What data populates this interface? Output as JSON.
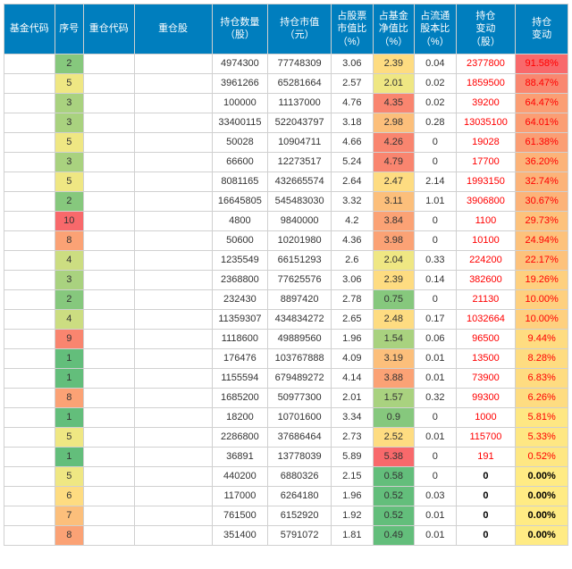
{
  "headers": [
    "基金代码",
    "序号",
    "重仓代码",
    "重仓股",
    "持仓数量\n（股）",
    "持仓市值\n（元）",
    "占股票\n市值比\n（%）",
    "占基金\n净值比\n（%）",
    "占流通\n股本比\n（%）",
    "持仓\n变动\n（股）",
    "持仓\n变动"
  ],
  "seqColorRamp": {
    "1": "#63be7b",
    "2": "#86c87d",
    "3": "#a9d27f",
    "4": "#ccdd81",
    "5": "#efe783",
    "6": "#fedc81",
    "7": "#fcbf7b",
    "8": "#fba275",
    "9": "#f9856f",
    "10": "#f8696b"
  },
  "col7Ramp": [
    {
      "min": 0,
      "max": 0.6,
      "color": "#63be7b"
    },
    {
      "min": 0.6,
      "max": 1.0,
      "color": "#86c87d"
    },
    {
      "min": 1.0,
      "max": 1.6,
      "color": "#a9d27f"
    },
    {
      "min": 1.6,
      "max": 2.1,
      "color": "#efe783"
    },
    {
      "min": 2.1,
      "max": 2.6,
      "color": "#fedc81"
    },
    {
      "min": 2.6,
      "max": 3.2,
      "color": "#fcbf7b"
    },
    {
      "min": 3.2,
      "max": 4.0,
      "color": "#fba275"
    },
    {
      "min": 4.0,
      "max": 4.8,
      "color": "#f9856f"
    },
    {
      "min": 4.8,
      "max": 10,
      "color": "#f8696b"
    }
  ],
  "col10Ramp": [
    {
      "min": 0,
      "max": 0.01,
      "color": "#ffeb84"
    },
    {
      "min": 0.01,
      "max": 6,
      "color": "#fee783"
    },
    {
      "min": 6,
      "max": 10,
      "color": "#fedc81"
    },
    {
      "min": 10,
      "max": 20,
      "color": "#fed07f"
    },
    {
      "min": 20,
      "max": 30,
      "color": "#fdc27c"
    },
    {
      "min": 30,
      "max": 40,
      "color": "#fcb379"
    },
    {
      "min": 40,
      "max": 65,
      "color": "#fb9e74"
    },
    {
      "min": 65,
      "max": 89,
      "color": "#f98770"
    },
    {
      "min": 89,
      "max": 100,
      "color": "#f8696b"
    }
  ],
  "rows": [
    {
      "seq": "2",
      "qty": "4974300",
      "mv": "77748309",
      "p1": "3.06",
      "p2": "2.39",
      "p3": "0.04",
      "chg": "2377800",
      "chgPct": "91.58%"
    },
    {
      "seq": "5",
      "qty": "3961266",
      "mv": "65281664",
      "p1": "2.57",
      "p2": "2.01",
      "p3": "0.02",
      "chg": "1859500",
      "chgPct": "88.47%"
    },
    {
      "seq": "3",
      "qty": "100000",
      "mv": "11137000",
      "p1": "4.76",
      "p2": "4.35",
      "p3": "0.02",
      "chg": "39200",
      "chgPct": "64.47%"
    },
    {
      "seq": "3",
      "qty": "33400115",
      "mv": "522043797",
      "p1": "3.18",
      "p2": "2.98",
      "p3": "0.28",
      "chg": "13035100",
      "chgPct": "64.01%"
    },
    {
      "seq": "5",
      "qty": "50028",
      "mv": "10904711",
      "p1": "4.66",
      "p2": "4.26",
      "p3": "0",
      "chg": "19028",
      "chgPct": "61.38%"
    },
    {
      "seq": "3",
      "qty": "66600",
      "mv": "12273517",
      "p1": "5.24",
      "p2": "4.79",
      "p3": "0",
      "chg": "17700",
      "chgPct": "36.20%"
    },
    {
      "seq": "5",
      "qty": "8081165",
      "mv": "432665574",
      "p1": "2.64",
      "p2": "2.47",
      "p3": "2.14",
      "chg": "1993150",
      "chgPct": "32.74%"
    },
    {
      "seq": "2",
      "qty": "16645805",
      "mv": "545483030",
      "p1": "3.32",
      "p2": "3.11",
      "p3": "1.01",
      "chg": "3906800",
      "chgPct": "30.67%"
    },
    {
      "seq": "10",
      "qty": "4800",
      "mv": "9840000",
      "p1": "4.2",
      "p2": "3.84",
      "p3": "0",
      "chg": "1100",
      "chgPct": "29.73%"
    },
    {
      "seq": "8",
      "qty": "50600",
      "mv": "10201980",
      "p1": "4.36",
      "p2": "3.98",
      "p3": "0",
      "chg": "10100",
      "chgPct": "24.94%"
    },
    {
      "seq": "4",
      "qty": "1235549",
      "mv": "66151293",
      "p1": "2.6",
      "p2": "2.04",
      "p3": "0.33",
      "chg": "224200",
      "chgPct": "22.17%"
    },
    {
      "seq": "3",
      "qty": "2368800",
      "mv": "77625576",
      "p1": "3.06",
      "p2": "2.39",
      "p3": "0.14",
      "chg": "382600",
      "chgPct": "19.26%"
    },
    {
      "seq": "2",
      "qty": "232430",
      "mv": "8897420",
      "p1": "2.78",
      "p2": "0.75",
      "p3": "0",
      "chg": "21130",
      "chgPct": "10.00%"
    },
    {
      "seq": "4",
      "qty": "11359307",
      "mv": "434834272",
      "p1": "2.65",
      "p2": "2.48",
      "p3": "0.17",
      "chg": "1032664",
      "chgPct": "10.00%"
    },
    {
      "seq": "9",
      "qty": "1118600",
      "mv": "49889560",
      "p1": "1.96",
      "p2": "1.54",
      "p3": "0.06",
      "chg": "96500",
      "chgPct": "9.44%"
    },
    {
      "seq": "1",
      "qty": "176476",
      "mv": "103767888",
      "p1": "4.09",
      "p2": "3.19",
      "p3": "0.01",
      "chg": "13500",
      "chgPct": "8.28%"
    },
    {
      "seq": "1",
      "qty": "1155594",
      "mv": "679489272",
      "p1": "4.14",
      "p2": "3.88",
      "p3": "0.01",
      "chg": "73900",
      "chgPct": "6.83%"
    },
    {
      "seq": "8",
      "qty": "1685200",
      "mv": "50977300",
      "p1": "2.01",
      "p2": "1.57",
      "p3": "0.32",
      "chg": "99300",
      "chgPct": "6.26%"
    },
    {
      "seq": "1",
      "qty": "18200",
      "mv": "10701600",
      "p1": "3.34",
      "p2": "0.9",
      "p3": "0",
      "chg": "1000",
      "chgPct": "5.81%"
    },
    {
      "seq": "5",
      "qty": "2286800",
      "mv": "37686464",
      "p1": "2.73",
      "p2": "2.52",
      "p3": "0.01",
      "chg": "115700",
      "chgPct": "5.33%"
    },
    {
      "seq": "1",
      "qty": "36891",
      "mv": "13778039",
      "p1": "5.89",
      "p2": "5.38",
      "p3": "0",
      "chg": "191",
      "chgPct": "0.52%"
    },
    {
      "seq": "5",
      "qty": "440200",
      "mv": "6880326",
      "p1": "2.15",
      "p2": "0.58",
      "p3": "0",
      "chg": "0",
      "chgPct": "0.00%"
    },
    {
      "seq": "6",
      "qty": "117000",
      "mv": "6264180",
      "p1": "1.96",
      "p2": "0.52",
      "p3": "0.03",
      "chg": "0",
      "chgPct": "0.00%"
    },
    {
      "seq": "7",
      "qty": "761500",
      "mv": "6152920",
      "p1": "1.92",
      "p2": "0.52",
      "p3": "0.01",
      "chg": "0",
      "chgPct": "0.00%"
    },
    {
      "seq": "8",
      "qty": "351400",
      "mv": "5791072",
      "p1": "1.81",
      "p2": "0.49",
      "p3": "0.01",
      "chg": "0",
      "chgPct": "0.00%"
    }
  ]
}
